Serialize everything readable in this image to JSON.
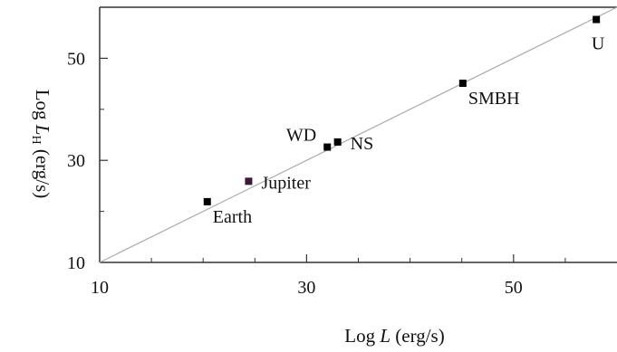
{
  "chart_data": {
    "type": "scatter",
    "title": "",
    "xlabel": {
      "prefix": "Log ",
      "var": "L",
      "sub": "",
      "suffix": " (erg/s)"
    },
    "ylabel": {
      "prefix": "Log ",
      "var": "L",
      "sub": "H",
      "suffix": " (erg/s)"
    },
    "xlim": [
      10,
      60
    ],
    "ylim": [
      10,
      60
    ],
    "x_ticks": [
      10,
      30,
      50
    ],
    "y_ticks": [
      10,
      30,
      50
    ],
    "x_minor_ticks": [
      15,
      20,
      25,
      35,
      40,
      45,
      55
    ],
    "y_minor_ticks": [
      20,
      40
    ],
    "reference_line": {
      "x": [
        10,
        60
      ],
      "y": [
        10,
        60
      ],
      "color": "#aaaaaa"
    },
    "grid": false,
    "legend": "none",
    "points": [
      {
        "label": "Earth",
        "x": 20.4,
        "y": 21.9,
        "color": "#000000",
        "label_pos": "below-right"
      },
      {
        "label": "Jupiter",
        "x": 24.4,
        "y": 25.9,
        "color": "#3a1a3a",
        "label_pos": "right"
      },
      {
        "label": "WD",
        "x": 32.0,
        "y": 32.6,
        "color": "#000000",
        "label_pos": "above-left"
      },
      {
        "label": "NS",
        "x": 33.0,
        "y": 33.6,
        "color": "#000000",
        "label_pos": "right"
      },
      {
        "label": "SMBH",
        "x": 45.1,
        "y": 45.1,
        "color": "#000000",
        "label_pos": "below-right"
      },
      {
        "label": "U",
        "x": 58.0,
        "y": 57.6,
        "color": "#000000",
        "label_pos": "below"
      }
    ]
  }
}
